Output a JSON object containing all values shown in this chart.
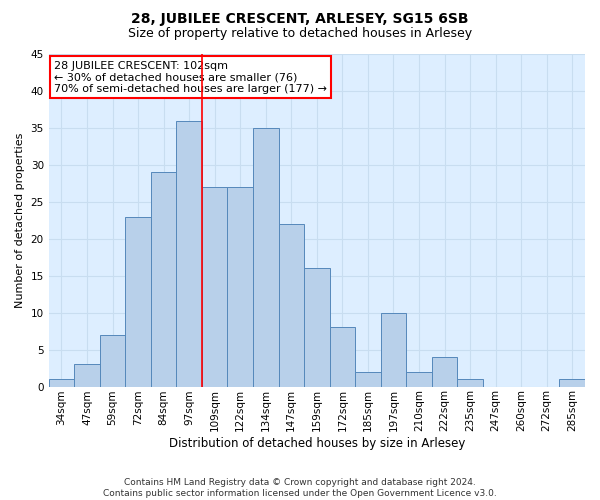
{
  "title1": "28, JUBILEE CRESCENT, ARLESEY, SG15 6SB",
  "title2": "Size of property relative to detached houses in Arlesey",
  "xlabel": "Distribution of detached houses by size in Arlesey",
  "ylabel": "Number of detached properties",
  "categories": [
    "34sqm",
    "47sqm",
    "59sqm",
    "72sqm",
    "84sqm",
    "97sqm",
    "109sqm",
    "122sqm",
    "134sqm",
    "147sqm",
    "159sqm",
    "172sqm",
    "185sqm",
    "197sqm",
    "210sqm",
    "222sqm",
    "235sqm",
    "247sqm",
    "260sqm",
    "272sqm",
    "285sqm"
  ],
  "values": [
    1,
    3,
    7,
    23,
    29,
    36,
    27,
    27,
    35,
    22,
    16,
    8,
    2,
    10,
    2,
    4,
    1,
    0,
    0,
    0,
    1
  ],
  "bar_color": "#b8d0ea",
  "bar_edge_color": "#5588bb",
  "grid_color": "#c8ddf0",
  "bg_color": "#ddeeff",
  "vline_color": "red",
  "vline_x_index": 5.5,
  "annotation_text": "28 JUBILEE CRESCENT: 102sqm\n← 30% of detached houses are smaller (76)\n70% of semi-detached houses are larger (177) →",
  "annotation_box_color": "white",
  "annotation_box_edge": "red",
  "ylim": [
    0,
    45
  ],
  "yticks": [
    0,
    5,
    10,
    15,
    20,
    25,
    30,
    35,
    40,
    45
  ],
  "footnote": "Contains HM Land Registry data © Crown copyright and database right 2024.\nContains public sector information licensed under the Open Government Licence v3.0.",
  "title1_fontsize": 10,
  "title2_fontsize": 9,
  "xlabel_fontsize": 8.5,
  "ylabel_fontsize": 8,
  "tick_fontsize": 7.5,
  "annotation_fontsize": 8,
  "footnote_fontsize": 6.5
}
